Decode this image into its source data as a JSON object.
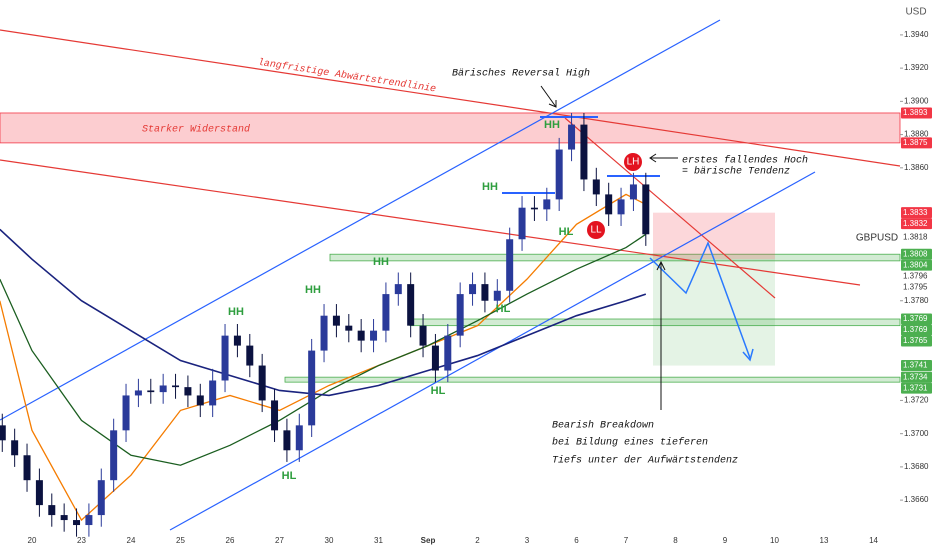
{
  "chart_data": {
    "type": "candlestick",
    "symbol": "GBPUSD",
    "currency": "USD",
    "categories": [
      "20",
      "23",
      "24",
      "25",
      "26",
      "27",
      "30",
      "31",
      "Sep",
      "2",
      "3",
      "6",
      "7",
      "8",
      "9",
      "10",
      "13",
      "14"
    ],
    "xlim": [
      -0.646,
      17.535
    ],
    "ylim": [
      1.3636,
      1.3961
    ],
    "yticks": [
      {
        "value": 1.394,
        "label": "1.3940"
      },
      {
        "value": 1.392,
        "label": "1.3920"
      },
      {
        "value": 1.39,
        "label": "1.3900"
      },
      {
        "value": 1.388,
        "label": "1.3880"
      },
      {
        "value": 1.386,
        "label": "1.3860"
      },
      {
        "value": 1.378,
        "label": "1.3780"
      },
      {
        "value": 1.372,
        "label": "1.3720"
      },
      {
        "value": 1.37,
        "label": "1.3700"
      },
      {
        "value": 1.368,
        "label": "1.3680"
      },
      {
        "value": 1.366,
        "label": "1.3660"
      }
    ],
    "grid": false,
    "up_color": "#2a3a9a",
    "down_color": "#0b1240",
    "candles": {
      "x": [
        -0.6,
        -0.35,
        -0.1,
        0.15,
        0.4,
        0.65,
        0.9,
        1.15,
        1.4,
        1.65,
        1.9,
        2.15,
        2.4,
        2.65,
        2.9,
        3.15,
        3.4,
        3.65,
        3.9,
        4.15,
        4.4,
        4.65,
        4.9,
        5.15,
        5.4,
        5.65,
        5.9,
        6.15,
        6.4,
        6.65,
        6.9,
        7.15,
        7.4,
        7.65,
        7.9,
        8.15,
        8.4,
        8.65,
        8.9,
        9.15,
        9.4,
        9.65,
        9.9,
        10.15,
        10.4,
        10.65,
        10.9,
        11.15,
        11.4,
        11.65,
        11.9,
        12.15,
        12.4
      ],
      "open": [
        1.3705,
        1.3696,
        1.3687,
        1.3672,
        1.3657,
        1.3651,
        1.3648,
        1.3645,
        1.3651,
        1.3672,
        1.3702,
        1.3723,
        1.3726,
        1.3725,
        1.3729,
        1.3728,
        1.3723,
        1.3717,
        1.3732,
        1.3759,
        1.3753,
        1.3741,
        1.372,
        1.3702,
        1.369,
        1.3705,
        1.375,
        1.3771,
        1.3765,
        1.3762,
        1.3756,
        1.3762,
        1.3784,
        1.379,
        1.3765,
        1.3753,
        1.3738,
        1.3759,
        1.3784,
        1.379,
        1.378,
        1.3786,
        1.3817,
        1.3836,
        1.3835,
        1.3841,
        1.3871,
        1.3886,
        1.3853,
        1.3844,
        1.3832,
        1.3841,
        1.385
      ],
      "high": [
        1.3712,
        1.3703,
        1.3694,
        1.3679,
        1.3664,
        1.3658,
        1.3655,
        1.3658,
        1.3679,
        1.3709,
        1.373,
        1.3733,
        1.3733,
        1.3736,
        1.3736,
        1.3735,
        1.373,
        1.3739,
        1.3766,
        1.3766,
        1.376,
        1.3748,
        1.3727,
        1.3709,
        1.3712,
        1.3757,
        1.3778,
        1.3778,
        1.3772,
        1.3769,
        1.3769,
        1.3791,
        1.3797,
        1.3797,
        1.3772,
        1.376,
        1.3766,
        1.3791,
        1.3797,
        1.3797,
        1.3793,
        1.3824,
        1.3843,
        1.3843,
        1.3848,
        1.3878,
        1.3893,
        1.3893,
        1.386,
        1.3851,
        1.3848,
        1.3857,
        1.3857
      ],
      "low": [
        1.3689,
        1.368,
        1.3665,
        1.365,
        1.3644,
        1.3641,
        1.3638,
        1.3638,
        1.3644,
        1.3665,
        1.3695,
        1.3716,
        1.3718,
        1.3718,
        1.3721,
        1.3716,
        1.371,
        1.371,
        1.3725,
        1.3746,
        1.3734,
        1.3713,
        1.3695,
        1.3683,
        1.3683,
        1.3698,
        1.3743,
        1.3758,
        1.3755,
        1.3749,
        1.3749,
        1.3755,
        1.3777,
        1.3758,
        1.3746,
        1.3731,
        1.3731,
        1.3752,
        1.3777,
        1.3773,
        1.3773,
        1.3779,
        1.381,
        1.3828,
        1.3828,
        1.3834,
        1.3864,
        1.3846,
        1.3837,
        1.3825,
        1.3825,
        1.3834,
        1.3813
      ],
      "close": [
        1.3696,
        1.3687,
        1.3672,
        1.3657,
        1.3651,
        1.3648,
        1.3645,
        1.3651,
        1.3672,
        1.3702,
        1.3723,
        1.3726,
        1.3725,
        1.3729,
        1.3728,
        1.3723,
        1.3717,
        1.3732,
        1.3759,
        1.3753,
        1.3741,
        1.372,
        1.3702,
        1.369,
        1.3705,
        1.375,
        1.3771,
        1.3765,
        1.3762,
        1.3756,
        1.3762,
        1.3784,
        1.379,
        1.3765,
        1.3753,
        1.3738,
        1.3759,
        1.3784,
        1.379,
        1.378,
        1.3786,
        1.3817,
        1.3836,
        1.3835,
        1.3841,
        1.3871,
        1.3886,
        1.3853,
        1.3844,
        1.3832,
        1.3841,
        1.385,
        1.382
      ]
    },
    "moving_averages": [
      {
        "color": "#f57c00",
        "x": [
          -0.65,
          0,
          1,
          2,
          3,
          4,
          5,
          6,
          7,
          8,
          9,
          10,
          11,
          12,
          12.4
        ],
        "values": [
          1.378,
          1.3702,
          1.3648,
          1.3675,
          1.3714,
          1.3723,
          1.3714,
          1.3729,
          1.3741,
          1.3753,
          1.3765,
          1.3793,
          1.3826,
          1.3844,
          1.3838
        ]
      },
      {
        "color": "#1b5e20",
        "x": [
          -0.65,
          0,
          1,
          2,
          3,
          4,
          5,
          6,
          7,
          8,
          9,
          10,
          11,
          12,
          12.4
        ],
        "values": [
          1.3793,
          1.375,
          1.3708,
          1.3687,
          1.3681,
          1.3693,
          1.3708,
          1.3726,
          1.3741,
          1.3753,
          1.3768,
          1.3784,
          1.3799,
          1.3812,
          1.382
        ]
      },
      {
        "color": "#1a237e",
        "x": [
          -0.65,
          0,
          1,
          2,
          3,
          4,
          5,
          6,
          7,
          8,
          9,
          10,
          11,
          12,
          12.4
        ],
        "values": [
          1.3823,
          1.3805,
          1.378,
          1.3762,
          1.3744,
          1.3735,
          1.3726,
          1.3723,
          1.3729,
          1.3738,
          1.3747,
          1.3759,
          1.3771,
          1.378,
          1.3784
        ]
      }
    ],
    "zones": [
      {
        "from": 1.3875,
        "to": 1.3893,
        "color": "#f23645"
      },
      {
        "from": 1.3804,
        "to": 1.3808,
        "color": "#4caf50"
      },
      {
        "from": 1.3765,
        "to": 1.3769,
        "color": "#4caf50"
      },
      {
        "from": 1.3731,
        "to": 1.3734,
        "color": "#4caf50"
      }
    ],
    "position_tool": {
      "stop": 1.3833,
      "entry": 1.3805,
      "target": 1.3741
    },
    "price_labels": [
      {
        "value": 1.3893,
        "color": "#f23645"
      },
      {
        "value": 1.3875,
        "color": "#f23645"
      },
      {
        "value": 1.3833,
        "color": "#f23645"
      },
      {
        "value": 1.3832,
        "color": "#f23645"
      },
      {
        "value": 1.3818,
        "color": "#ffffff"
      },
      {
        "value": 1.3808,
        "color": "#4caf50"
      },
      {
        "value": 1.3804,
        "color": "#4caf50"
      },
      {
        "value": 1.3796,
        "color": "#ffffff"
      },
      {
        "value": 1.3795,
        "color": "#ffffff"
      },
      {
        "value": 1.3769,
        "color": "#4caf50"
      },
      {
        "value": 1.3769,
        "color": "#4caf50"
      },
      {
        "value": 1.3765,
        "color": "#4caf50"
      },
      {
        "value": 1.3741,
        "color": "#4caf50"
      },
      {
        "value": 1.3734,
        "color": "#4caf50"
      },
      {
        "value": 1.3731,
        "color": "#4caf50"
      }
    ],
    "annotations": {
      "reversal": "Bärisches Reversal High",
      "trendline": "langfristige Abwärtstrendlinie",
      "resistance": "Starker Widerstand",
      "lower_high": [
        "erstes fallendes Hoch",
        "= bärische Tendenz"
      ],
      "breakdown": [
        "Bearish Breakdown",
        "bei Bildung eines tieferen",
        "Tiefs unter der Aufwärtstendenz"
      ]
    },
    "swing_labels": [
      "HH",
      "HH",
      "HH",
      "HH",
      "HH",
      "HL",
      "HL",
      "HL",
      "HL",
      "LH",
      "LL"
    ]
  }
}
